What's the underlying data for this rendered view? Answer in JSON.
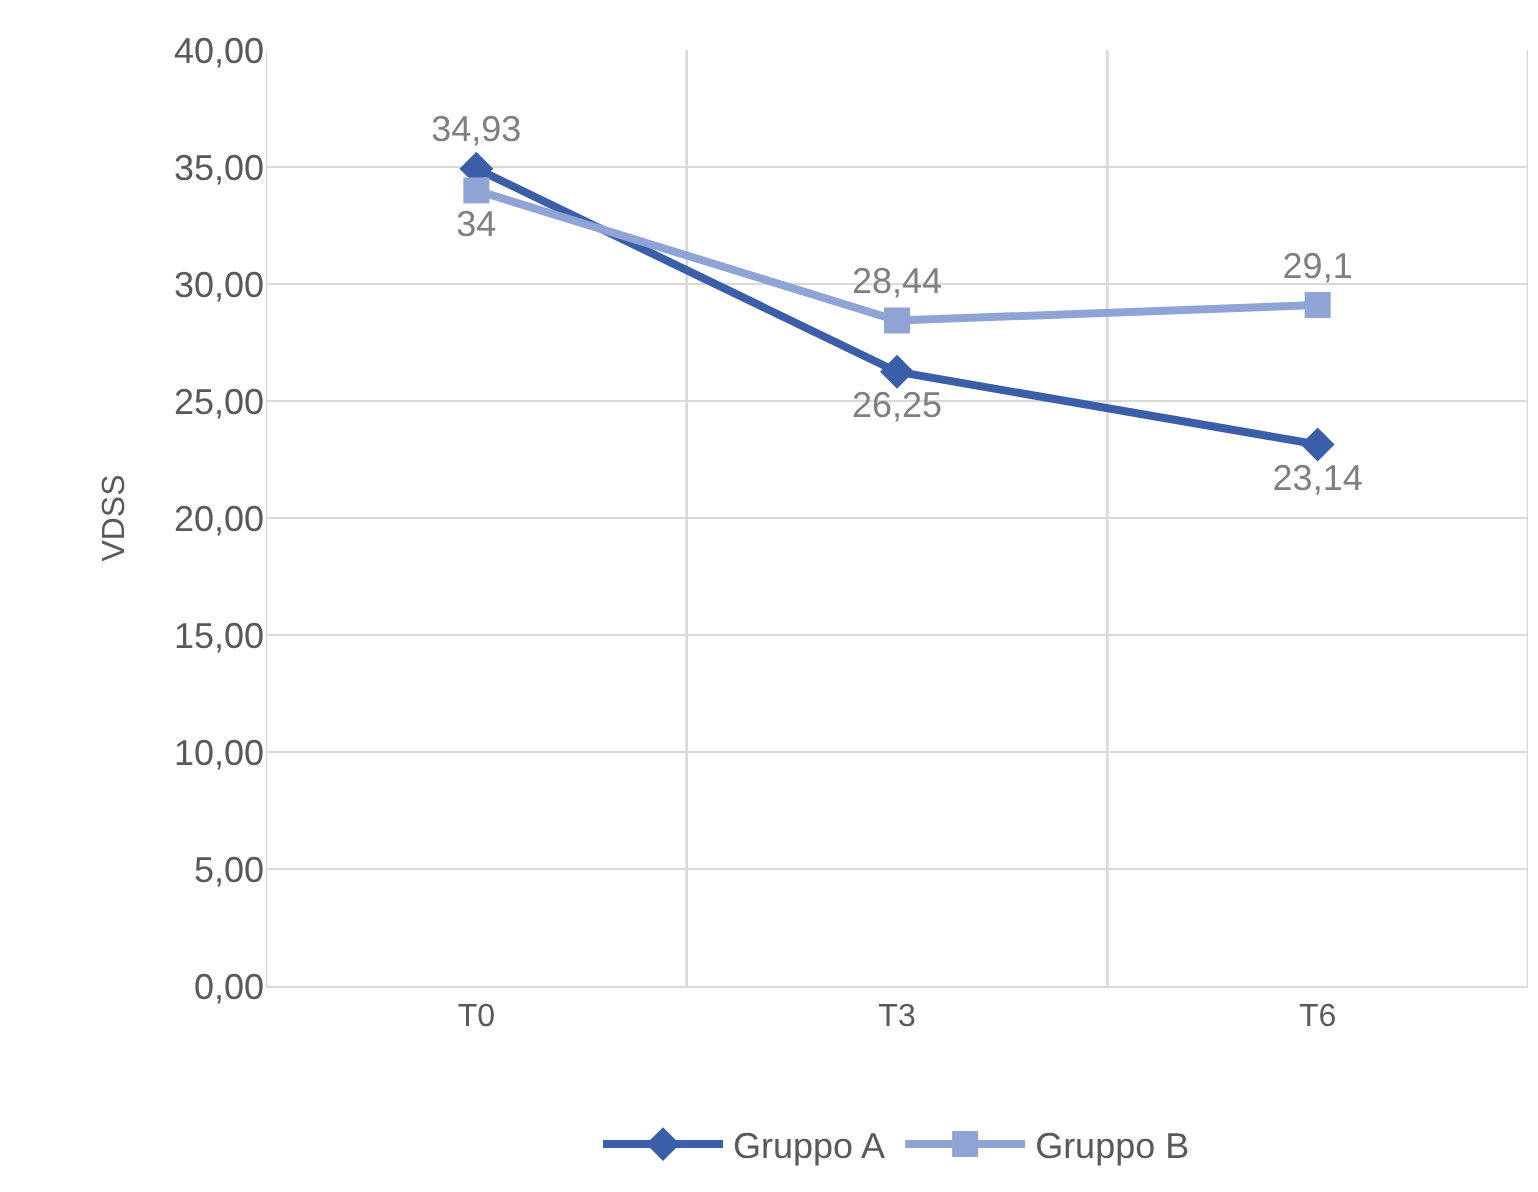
{
  "chart_data": {
    "type": "line",
    "ylabel": "VDSS",
    "categories": [
      "T0",
      "T3",
      "T6"
    ],
    "series": [
      {
        "name": "Gruppo A",
        "color": "#3a5ea8",
        "marker": "diamond",
        "values": [
          34.93,
          26.25,
          23.14
        ],
        "value_labels": [
          "34,93",
          "26,25",
          "23,14"
        ]
      },
      {
        "name": "Gruppo B",
        "color": "#8fa3d4",
        "marker": "square",
        "values": [
          34,
          28.44,
          29.1
        ],
        "value_labels": [
          "34",
          "28,44",
          "29,1"
        ]
      }
    ],
    "ylim": [
      0,
      40
    ],
    "yticks": [
      {
        "value": 0,
        "label": "0,00"
      },
      {
        "value": 5,
        "label": "5,00"
      },
      {
        "value": 10,
        "label": "10,00"
      },
      {
        "value": 15,
        "label": "15,00"
      },
      {
        "value": 20,
        "label": "20,00"
      },
      {
        "value": 25,
        "label": "25,00"
      },
      {
        "value": 30,
        "label": "30,00"
      },
      {
        "value": 35,
        "label": "35,00"
      },
      {
        "value": 40,
        "label": "40,00"
      }
    ],
    "grid": true,
    "legend": "bottom",
    "line_style": "solid"
  }
}
